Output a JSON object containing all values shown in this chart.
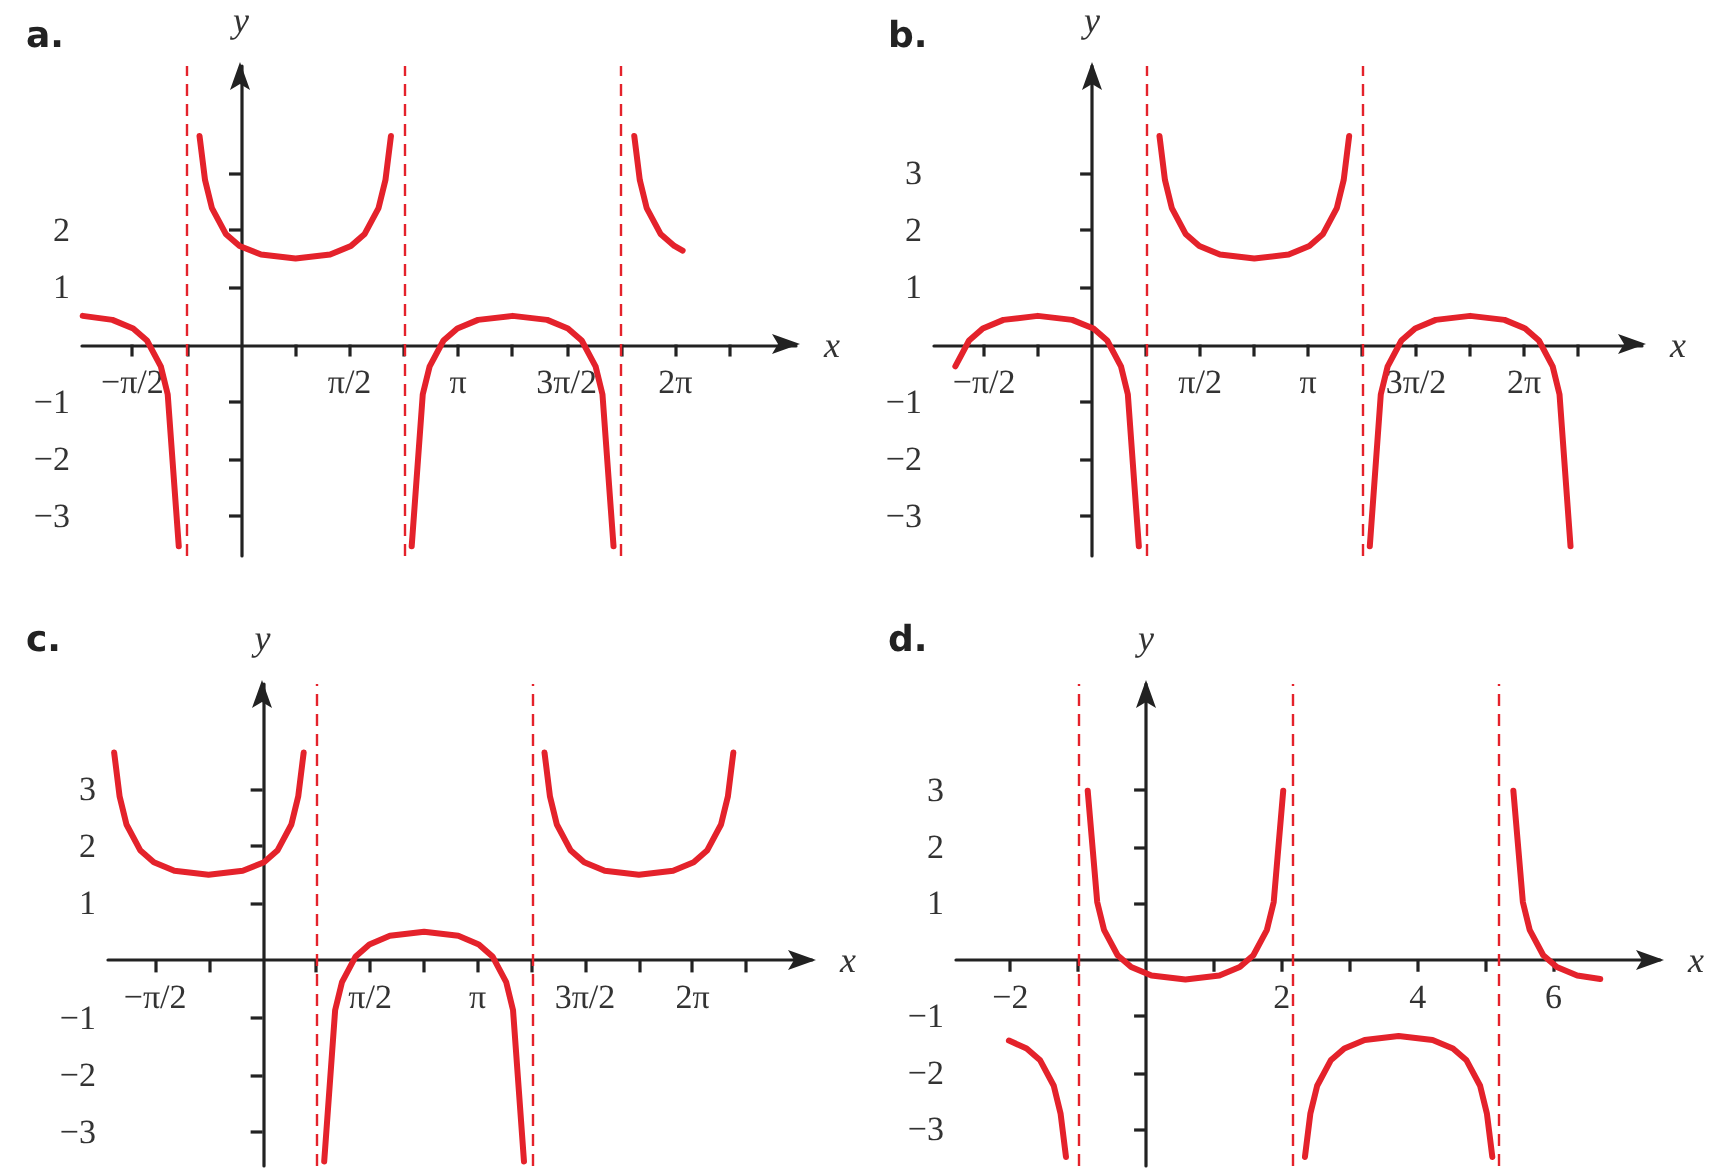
{
  "chart_data": [
    {
      "type": "line",
      "title": "a.",
      "xlabel": "x",
      "ylabel": "y",
      "xlim": [
        -2.3,
        8.03
      ],
      "ylim": [
        -3.69,
        4.86
      ],
      "xticks": [
        {
          "value": -1.571,
          "label": "−π/2"
        },
        {
          "value": -0.785,
          "label": null
        },
        {
          "value": 0.785,
          "label": null
        },
        {
          "value": 1.571,
          "label": "π/2"
        },
        {
          "value": 2.356,
          "label": null
        },
        {
          "value": 3.142,
          "label": "π"
        },
        {
          "value": 3.927,
          "label": null
        },
        {
          "value": 4.712,
          "label": "3π/2"
        },
        {
          "value": 5.498,
          "label": null
        },
        {
          "value": 6.283,
          "label": "2π"
        },
        {
          "value": 7.069,
          "label": null
        }
      ],
      "yticks": [
        {
          "value": -3,
          "label": "−3"
        },
        {
          "value": -2,
          "label": "−2"
        },
        {
          "value": -1,
          "label": "−1"
        },
        1,
        2,
        {
          "value": 3,
          "label": null
        }
      ],
      "ref_lines": [
        {
          "axis": "x",
          "value": -0.785,
          "color": "#e4222b",
          "line_style": "dashed"
        },
        {
          "axis": "x",
          "value": 2.356,
          "color": "#e4222b",
          "line_style": "dashed"
        },
        {
          "axis": "x",
          "value": 5.498,
          "color": "#e4222b",
          "line_style": "dashed"
        }
      ],
      "series": [
        {
          "color": "#e4222b",
          "x": [
            -2.29,
            -1.86,
            -1.56,
            -1.36,
            -1.16,
            -1.06,
            -0.9
          ],
          "values": [
            0.5,
            0.43,
            0.28,
            0.07,
            -0.38,
            -0.87,
            -3.52
          ]
        },
        {
          "color": "#e4222b",
          "x": [
            -0.6,
            -0.52,
            -0.42,
            -0.22,
            -0.02,
            0.29,
            0.79,
            1.29,
            1.59,
            1.79,
            1.99,
            2.09,
            2.17
          ],
          "values": [
            3.64,
            2.87,
            2.38,
            1.93,
            1.72,
            1.57,
            1.5,
            1.57,
            1.72,
            1.93,
            2.38,
            2.87,
            3.64
          ]
        },
        {
          "color": "#e4222b",
          "x": [
            2.47,
            2.63,
            2.73,
            2.93,
            3.13,
            3.43,
            3.93,
            4.43,
            4.73,
            4.93,
            5.13,
            5.23,
            5.39
          ],
          "values": [
            -3.52,
            -0.87,
            -0.38,
            0.07,
            0.28,
            0.43,
            0.5,
            0.43,
            0.28,
            0.07,
            -0.38,
            -0.87,
            -3.52
          ]
        },
        {
          "color": "#e4222b",
          "x": [
            5.69,
            5.77,
            5.87,
            6.07,
            6.27,
            6.39
          ],
          "values": [
            3.64,
            2.87,
            2.38,
            1.93,
            1.72,
            1.64
          ]
        }
      ]
    },
    {
      "type": "line",
      "title": "b.",
      "xlabel": "x",
      "ylabel": "y",
      "xlim": [
        -2.3,
        8.0
      ],
      "ylim": [
        -3.69,
        4.86
      ],
      "xticks": [
        {
          "value": -1.571,
          "label": "−π/2"
        },
        {
          "value": -0.785,
          "label": null
        },
        {
          "value": 0.785,
          "label": null
        },
        {
          "value": 1.571,
          "label": "π/2"
        },
        {
          "value": 2.356,
          "label": null
        },
        {
          "value": 3.142,
          "label": "π"
        },
        {
          "value": 3.927,
          "label": null
        },
        {
          "value": 4.712,
          "label": "3π/2"
        },
        {
          "value": 5.498,
          "label": null
        },
        {
          "value": 6.283,
          "label": "2π"
        },
        {
          "value": 7.069,
          "label": null
        }
      ],
      "yticks": [
        {
          "value": -3,
          "label": "−3"
        },
        {
          "value": -2,
          "label": "−2"
        },
        {
          "value": -1,
          "label": "−1"
        },
        1,
        2,
        3
      ],
      "ref_lines": [
        {
          "axis": "x",
          "value": 0.785,
          "color": "#e4222b",
          "line_style": "dashed"
        },
        {
          "axis": "x",
          "value": 3.927,
          "color": "#e4222b",
          "line_style": "dashed"
        }
      ],
      "series": [
        {
          "color": "#e4222b",
          "x": [
            -1.99,
            -1.79,
            -1.59,
            -1.29,
            -0.79,
            -0.29,
            0.02,
            0.22,
            0.42,
            0.52,
            0.68
          ],
          "values": [
            -0.38,
            0.07,
            0.28,
            0.43,
            0.5,
            0.43,
            0.28,
            0.07,
            -0.38,
            -0.87,
            -3.52
          ]
        },
        {
          "color": "#e4222b",
          "x": [
            0.98,
            1.06,
            1.16,
            1.36,
            1.56,
            1.86,
            2.36,
            2.86,
            3.16,
            3.36,
            3.56,
            3.66,
            3.74
          ],
          "values": [
            3.64,
            2.87,
            2.38,
            1.93,
            1.72,
            1.57,
            1.5,
            1.57,
            1.72,
            1.93,
            2.38,
            2.87,
            3.64
          ]
        },
        {
          "color": "#e4222b",
          "x": [
            4.04,
            4.2,
            4.3,
            4.5,
            4.7,
            5.0,
            5.5,
            6.0,
            6.3,
            6.5,
            6.7,
            6.8,
            6.96
          ],
          "values": [
            -3.52,
            -0.87,
            -0.38,
            0.07,
            0.28,
            0.43,
            0.5,
            0.43,
            0.28,
            0.07,
            -0.38,
            -0.87,
            -3.52
          ]
        }
      ]
    },
    {
      "type": "line",
      "title": "c.",
      "xlabel": "x",
      "ylabel": "y",
      "xlim": [
        -2.26,
        8.03
      ],
      "ylim": [
        -3.6,
        4.84
      ],
      "xticks": [
        {
          "value": -1.571,
          "label": "−π/2"
        },
        {
          "value": -0.785,
          "label": null
        },
        {
          "value": 0.785,
          "label": null
        },
        {
          "value": 1.571,
          "label": "π/2"
        },
        {
          "value": 2.356,
          "label": null
        },
        {
          "value": 3.142,
          "label": "π"
        },
        {
          "value": 3.927,
          "label": null
        },
        {
          "value": 4.712,
          "label": "3π/2"
        },
        {
          "value": 5.498,
          "label": null
        },
        {
          "value": 6.283,
          "label": "2π"
        },
        {
          "value": 7.069,
          "label": null
        }
      ],
      "yticks": [
        {
          "value": -3,
          "label": "−3"
        },
        {
          "value": -2,
          "label": "−2"
        },
        {
          "value": -1,
          "label": "−1"
        },
        1,
        2,
        3
      ],
      "ref_lines": [
        {
          "axis": "x",
          "value": 0.785,
          "color": "#e4222b",
          "line_style": "dashed"
        },
        {
          "axis": "x",
          "value": 3.927,
          "color": "#e4222b",
          "line_style": "dashed"
        }
      ],
      "series": [
        {
          "color": "#e4222b",
          "x": [
            -2.17,
            -2.09,
            -1.99,
            -1.79,
            -1.59,
            -1.29,
            -0.79,
            -0.29,
            0.02,
            0.22,
            0.42,
            0.52,
            0.6
          ],
          "values": [
            3.64,
            2.87,
            2.38,
            1.93,
            1.72,
            1.57,
            1.5,
            1.57,
            1.72,
            1.93,
            2.38,
            2.87,
            3.64
          ]
        },
        {
          "color": "#e4222b",
          "x": [
            0.9,
            1.06,
            1.16,
            1.36,
            1.56,
            1.86,
            2.36,
            2.86,
            3.16,
            3.36,
            3.56,
            3.66,
            3.82
          ],
          "values": [
            -3.52,
            -0.87,
            -0.38,
            0.07,
            0.28,
            0.43,
            0.5,
            0.43,
            0.28,
            0.07,
            -0.38,
            -0.87,
            -3.52
          ]
        },
        {
          "color": "#e4222b",
          "x": [
            4.12,
            4.2,
            4.3,
            4.5,
            4.7,
            5.0,
            5.5,
            6.0,
            6.3,
            6.5,
            6.7,
            6.8,
            6.88
          ],
          "values": [
            3.64,
            2.87,
            2.38,
            1.93,
            1.72,
            1.57,
            1.5,
            1.57,
            1.72,
            1.93,
            2.38,
            2.87,
            3.64
          ]
        }
      ]
    },
    {
      "type": "line",
      "title": "d.",
      "xlabel": "x",
      "ylabel": "y",
      "xlim": [
        -2.8,
        7.57
      ],
      "ylim": [
        -3.65,
        4.88
      ],
      "xticks": [
        {
          "value": -2,
          "label": "−2"
        },
        {
          "value": -1,
          "label": null
        },
        {
          "value": 1,
          "label": null
        },
        2,
        {
          "value": 3,
          "label": null
        },
        4,
        {
          "value": 5,
          "label": null
        },
        6
      ],
      "yticks": [
        {
          "value": -3,
          "label": "−3"
        },
        {
          "value": -2,
          "label": "−2"
        },
        {
          "value": -1,
          "label": "−1"
        },
        1,
        2,
        3
      ],
      "ref_lines": [
        {
          "axis": "x",
          "value": -1.01,
          "color": "#e4222b",
          "line_style": "dashed"
        },
        {
          "axis": "x",
          "value": 2.16,
          "color": "#e4222b",
          "line_style": "dashed"
        },
        {
          "axis": "x",
          "value": 5.19,
          "color": "#e4222b",
          "line_style": "dashed"
        }
      ],
      "series": [
        {
          "color": "#e4222b",
          "x": [
            -2.02,
            -1.76,
            -1.56,
            -1.36,
            -1.26,
            -1.18
          ],
          "values": [
            -1.43,
            -1.57,
            -1.78,
            -2.23,
            -2.72,
            -3.49
          ]
        },
        {
          "color": "#e4222b",
          "x": [
            -0.86,
            -0.72,
            -0.62,
            -0.42,
            -0.22,
            0.08,
            0.58,
            1.08,
            1.38,
            1.58,
            1.78,
            1.88,
            2.02
          ],
          "values": [
            2.99,
            1.02,
            0.53,
            0.08,
            -0.13,
            -0.28,
            -0.35,
            -0.28,
            -0.13,
            0.08,
            0.53,
            1.02,
            2.99
          ]
        },
        {
          "color": "#e4222b",
          "x": [
            2.34,
            2.42,
            2.52,
            2.72,
            2.92,
            3.22,
            3.72,
            4.22,
            4.52,
            4.72,
            4.92,
            5.02,
            5.1
          ],
          "values": [
            -3.49,
            -2.72,
            -2.23,
            -1.78,
            -1.57,
            -1.42,
            -1.35,
            -1.42,
            -1.57,
            -1.78,
            -2.23,
            -2.72,
            -3.49
          ]
        },
        {
          "color": "#e4222b",
          "x": [
            5.41,
            5.55,
            5.65,
            5.85,
            6.05,
            6.35,
            6.69
          ],
          "values": [
            2.99,
            1.02,
            0.53,
            0.08,
            -0.13,
            -0.28,
            -0.34
          ]
        }
      ]
    }
  ]
}
